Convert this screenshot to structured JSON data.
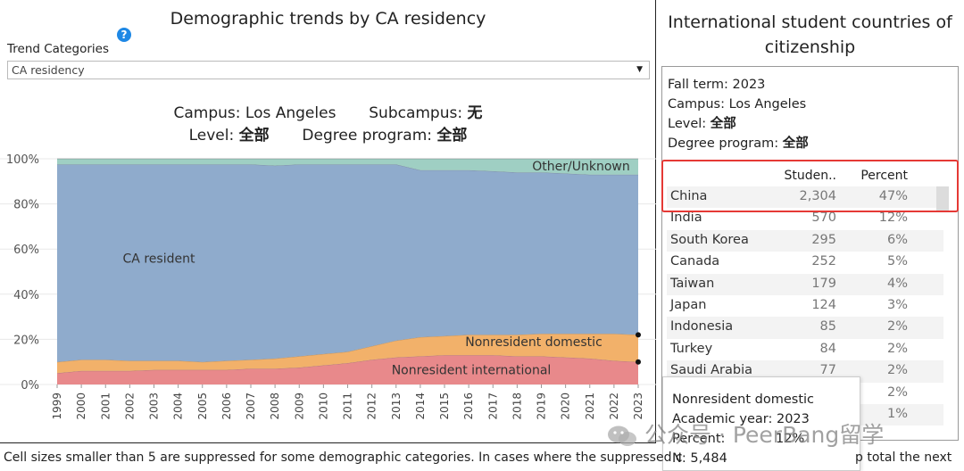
{
  "left": {
    "title": "Demographic trends by CA residency",
    "trend_label": "Trend Categories",
    "trend_value": "CA residency",
    "filters": {
      "campus_label": "Campus:",
      "campus_value": "Los Angeles",
      "subcampus_label": "Subcampus:",
      "subcampus_value": "无",
      "level_label": "Level:",
      "level_value": "全部",
      "program_label": "Degree program:",
      "program_value": "全部"
    }
  },
  "chart_data": {
    "type": "area",
    "stacked": true,
    "x": [
      1999,
      2000,
      2001,
      2002,
      2003,
      2004,
      2005,
      2006,
      2007,
      2008,
      2009,
      2010,
      2011,
      2012,
      2013,
      2014,
      2015,
      2016,
      2017,
      2018,
      2019,
      2020,
      2021,
      2022,
      2023
    ],
    "series": [
      {
        "name": "Nonresident international",
        "color": "#e8898b",
        "values": [
          5,
          6,
          6,
          6,
          6.5,
          6.5,
          6.5,
          6.5,
          7,
          7,
          7.5,
          8.5,
          9.5,
          11,
          12,
          12.5,
          13,
          13,
          13,
          12.5,
          12.5,
          12,
          11.5,
          10.5,
          10
        ]
      },
      {
        "name": "Nonresident domestic",
        "color": "#f2b16a",
        "values": [
          5,
          5,
          5,
          4.5,
          4,
          4,
          3.5,
          4,
          4,
          4.5,
          5,
          5,
          5,
          6,
          7.5,
          8.5,
          8.5,
          9,
          9,
          9.5,
          10,
          10.5,
          11,
          12,
          12
        ]
      },
      {
        "name": "CA resident",
        "color": "#8fabcc",
        "values": [
          87.5,
          86.5,
          86.5,
          87,
          87,
          87,
          87.5,
          87,
          86.5,
          85.5,
          85,
          84,
          83,
          80.5,
          78,
          74,
          73.5,
          73,
          72.5,
          72,
          71.5,
          71,
          70.5,
          70.5,
          71
        ]
      },
      {
        "name": "Other/Unknown",
        "color": "#9fcfc3",
        "values": [
          2.5,
          2.5,
          2.5,
          2.5,
          2.5,
          2.5,
          2.5,
          2.5,
          2.5,
          3,
          2.5,
          2.5,
          2.5,
          2.5,
          2.5,
          5,
          5,
          5,
          5.5,
          6,
          6,
          6.5,
          7,
          7,
          7
        ]
      }
    ],
    "y_ticks": [
      "0%",
      "20%",
      "40%",
      "60%",
      "80%",
      "100%"
    ],
    "ylim": [
      0,
      100
    ]
  },
  "right": {
    "title": "International student countries of citizenship",
    "info": {
      "fall_term_label": "Fall term:",
      "fall_term_value": "2023",
      "campus_label": "Campus:",
      "campus_value": "Los Angeles",
      "level_label": "Level:",
      "level_value": "全部",
      "program_label": "Degree program:",
      "program_value": "全部"
    },
    "table": {
      "headers": {
        "students": "Studen..",
        "percent": "Percent"
      },
      "rows": [
        {
          "country": "China",
          "students": "2,304",
          "percent": "47%"
        },
        {
          "country": "India",
          "students": "570",
          "percent": "12%"
        },
        {
          "country": "South Korea",
          "students": "295",
          "percent": "6%"
        },
        {
          "country": "Canada",
          "students": "252",
          "percent": "5%"
        },
        {
          "country": "Taiwan",
          "students": "179",
          "percent": "4%"
        },
        {
          "country": "Japan",
          "students": "124",
          "percent": "3%"
        },
        {
          "country": "Indonesia",
          "students": "85",
          "percent": "2%"
        },
        {
          "country": "Turkey",
          "students": "84",
          "percent": "2%"
        },
        {
          "country": "Saudi Arabia",
          "students": "77",
          "percent": "2%"
        },
        {
          "country": "",
          "students": "",
          "percent": "2%"
        },
        {
          "country": "",
          "students": "",
          "percent": "1%"
        }
      ]
    }
  },
  "tooltip": {
    "title": "Nonresident domestic",
    "year_label": "Academic year:",
    "year_value": "2023",
    "pct_label": "Percent:",
    "pct_value": "12%",
    "n_label": "N:",
    "n_value": "5,484"
  },
  "footnote": "Cell sizes smaller than 5 are suppressed for some demographic categories. In cases where the suppressed c",
  "footnote_tail": "p total the next",
  "watermark": "公众号 · PeerBang留学"
}
